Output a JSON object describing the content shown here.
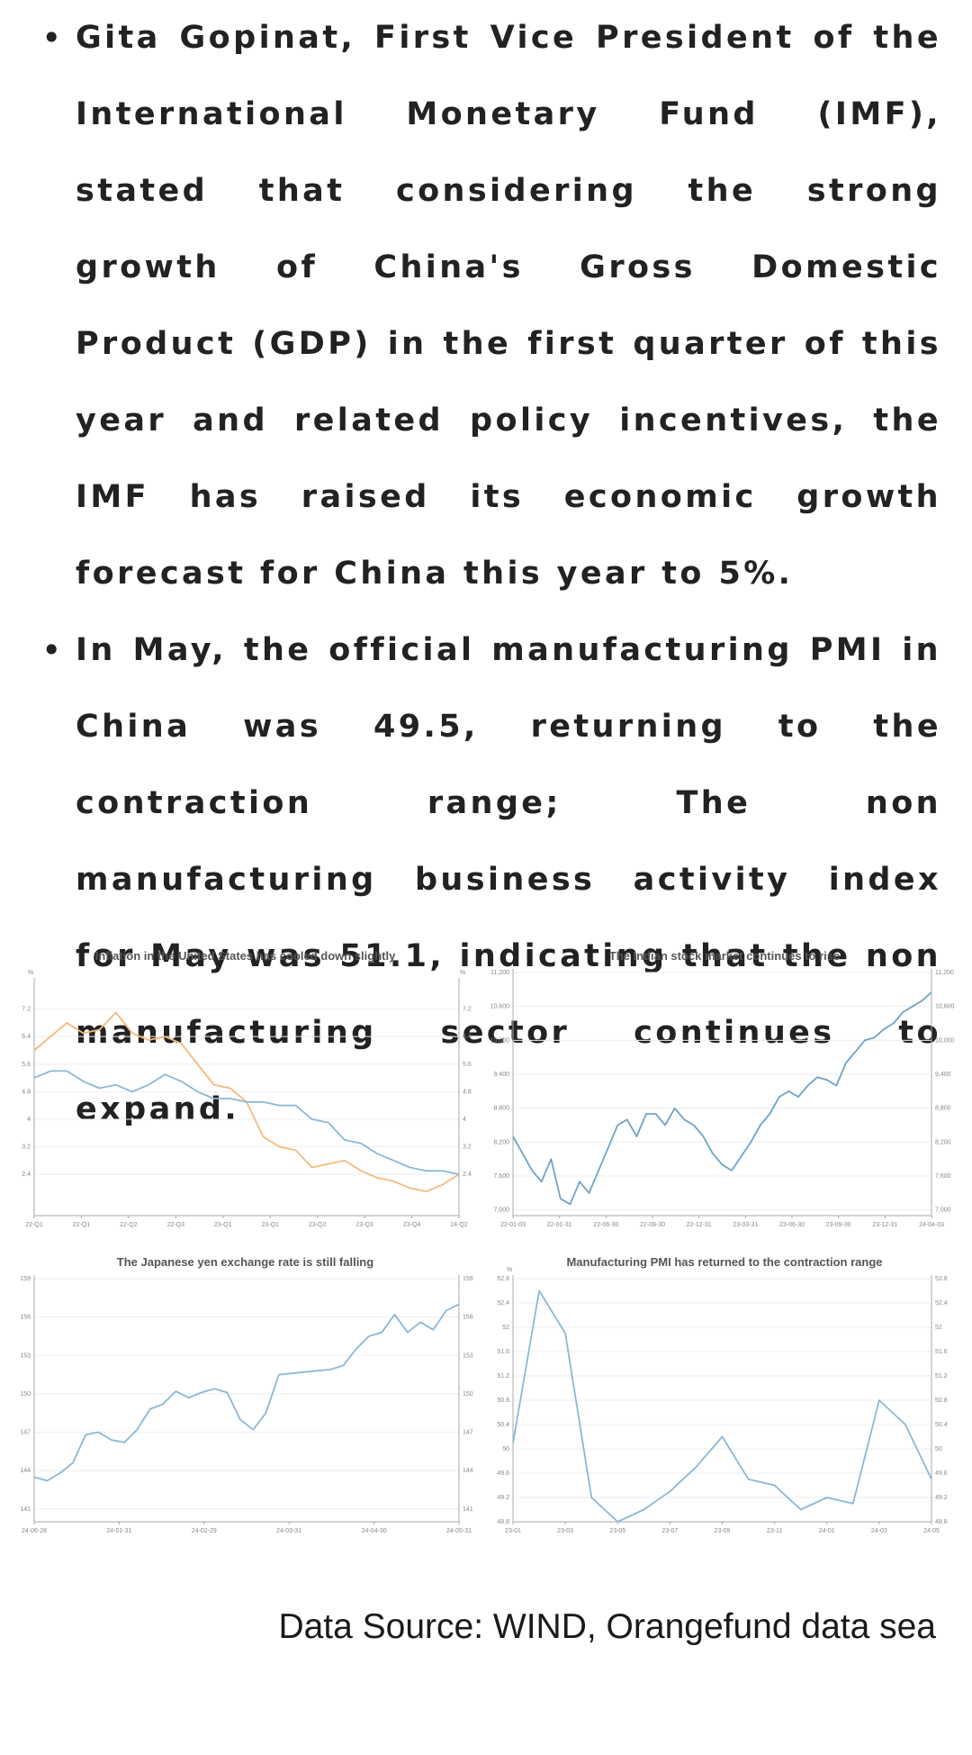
{
  "bullets": [
    {
      "text": "Gita Gopinat, First Vice President of the International Monetary Fund (IMF), stated that considering the strong growth of China's Gross Domestic Product (GDP) in the first quarter of this year and related policy incentives, the IMF has raised its economic growth forecast for China this year to 5%."
    },
    {
      "text": "In May, the official manufacturing PMI in China was 49.5, returning to the contraction range; The non manufacturing business activity index for May was 51.1, indicating that the non manufacturing sector continues to expand."
    }
  ],
  "chart_data": [
    {
      "type": "line",
      "title": "Inflation in the United States has cooled down slightly",
      "ylabel": "%",
      "y2label": "%",
      "ylim": [
        1.2,
        8
      ],
      "yticks": [
        2.4,
        3.2,
        4,
        4.8,
        5.6,
        6.4,
        7.2
      ],
      "xticks": [
        "22-Q1",
        "22-Q1",
        "22-Q2",
        "22-Q3",
        "23-Q1",
        "23-Q1",
        "23-Q2",
        "23-Q3",
        "23-Q4",
        "24-Q2"
      ],
      "colors": {
        "orange": "#f5b97a",
        "blue": "#8ab8d6"
      },
      "series": [
        {
          "color": "#f5b97a",
          "values": [
            6.0,
            6.4,
            6.8,
            6.5,
            6.6,
            7.1,
            6.5,
            6.3,
            6.4,
            6.2,
            5.6,
            5.0,
            4.9,
            4.5,
            3.5,
            3.2,
            3.1,
            2.6,
            2.7,
            2.8,
            2.5,
            2.3,
            2.2,
            2.0,
            1.9,
            2.1,
            2.4
          ]
        },
        {
          "color": "#8ab8d6",
          "values": [
            5.2,
            5.4,
            5.4,
            5.1,
            4.9,
            5.0,
            4.8,
            5.0,
            5.3,
            5.1,
            4.8,
            4.6,
            4.6,
            4.5,
            4.5,
            4.4,
            4.4,
            4.0,
            3.9,
            3.4,
            3.3,
            3.0,
            2.8,
            2.6,
            2.5,
            2.5,
            2.4
          ]
        }
      ]
    },
    {
      "type": "line",
      "title": "The Indian stock market continues to rise",
      "ylim": [
        6900,
        11200
      ],
      "yticks": [
        7000,
        7600,
        8200,
        8800,
        9400,
        10000,
        10600,
        11200
      ],
      "yticklabels": [
        "7,000",
        "7,600",
        "8,200",
        "8,800",
        "9,400",
        "10,000",
        "10,600",
        "11,200"
      ],
      "xticks": [
        "22-01-03",
        "22-01-31",
        "22-06-30",
        "22-09-30",
        "22-12-31",
        "23-03-31",
        "23-06-30",
        "23-09-30",
        "23-12-31",
        "24-04-03"
      ],
      "colors": {
        "line": "#6fa3c7"
      },
      "series": [
        {
          "values": [
            8300,
            8000,
            7700,
            7500,
            7900,
            7200,
            7100,
            7500,
            7300,
            7700,
            8100,
            8500,
            8600,
            8300,
            8700,
            8700,
            8500,
            8800,
            8600,
            8500,
            8300,
            8000,
            7800,
            7700,
            7950,
            8200,
            8500,
            8700,
            9000,
            9100,
            9000,
            9200,
            9350,
            9300,
            9200,
            9600,
            9800,
            10000,
            10050,
            10200,
            10300,
            10500,
            10600,
            10700,
            10850
          ]
        }
      ]
    },
    {
      "type": "line",
      "title": "The Japanese yen exchange rate is still falling",
      "ylim": [
        140,
        159
      ],
      "yticks": [
        141,
        144,
        147,
        150,
        153,
        156,
        159
      ],
      "xticks": [
        "24-06-28",
        "24-01-31",
        "24-02-29",
        "24-03-31",
        "24-04-30",
        "24-05-31"
      ],
      "colors": {
        "line": "#8ab8d6"
      },
      "series": [
        {
          "values": [
            143.5,
            143.2,
            143.8,
            144.6,
            146.8,
            147.0,
            146.4,
            146.2,
            147.2,
            148.8,
            149.2,
            150.2,
            149.7,
            150.1,
            150.4,
            150.1,
            148.0,
            147.2,
            148.5,
            151.5,
            151.6,
            151.7,
            151.8,
            151.9,
            152.2,
            153.5,
            154.5,
            154.8,
            156.2,
            154.8,
            155.6,
            155.0,
            156.5,
            157.0
          ]
        }
      ]
    },
    {
      "type": "line",
      "title": "Manufacturing PMI has returned to the contraction range",
      "ylabel": "%",
      "ylim": [
        48.8,
        52.8
      ],
      "yticks": [
        48.8,
        49.2,
        49.6,
        50.0,
        50.4,
        50.8,
        51.2,
        51.6,
        52.0,
        52.4,
        52.8
      ],
      "xticks": [
        "23-01",
        "23-03",
        "23-05",
        "23-07",
        "23-09",
        "23-11",
        "24-01",
        "24-03",
        "24-05"
      ],
      "colors": {
        "line": "#8ab8d6"
      },
      "series": [
        {
          "values": [
            50.1,
            52.6,
            51.9,
            49.2,
            48.8,
            49.0,
            49.3,
            49.7,
            50.2,
            49.5,
            49.4,
            49.0,
            49.2,
            49.1,
            50.8,
            50.4,
            49.5
          ]
        }
      ]
    }
  ],
  "source": {
    "text": "Data Source: WIND, Orangefund data sea"
  }
}
